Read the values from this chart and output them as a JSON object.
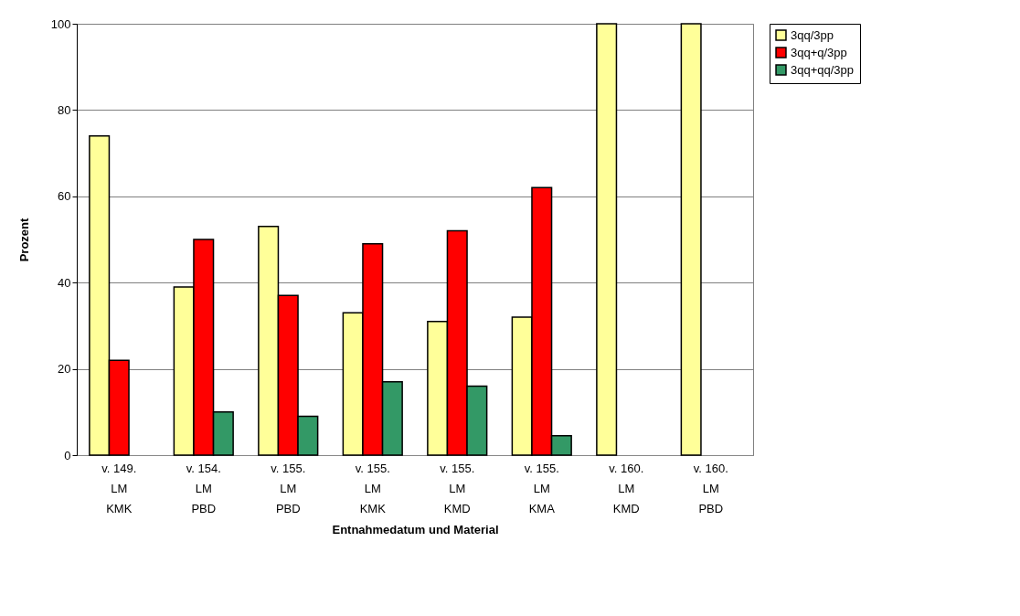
{
  "chart_data": {
    "type": "bar",
    "xlabel": "Entnahmedatum und Material",
    "ylabel": "Prozent",
    "categories": [
      "v. 149.\nLM\nKMK",
      "v. 154.\nLM\nPBD",
      "v. 155.\nLM\nPBD",
      "v. 155.\nLM\nKMK",
      "v. 155.\nLM\nKMD",
      "v. 155.\nLM\nKMA",
      "v. 160.\nLM\nKMD",
      "v. 160.\nLM\nPBD"
    ],
    "series": [
      {
        "name": "3qq/3pp",
        "color": "#ffff99",
        "values": [
          74,
          39,
          53,
          33,
          31,
          32,
          100,
          100
        ]
      },
      {
        "name": "3qq+q/3pp",
        "color": "#ff0000",
        "values": [
          22,
          50,
          37,
          49,
          52,
          62,
          0,
          0
        ]
      },
      {
        "name": "3qq+qq/3pp",
        "color": "#339966",
        "values": [
          0,
          10,
          9,
          17,
          16,
          4.5,
          0,
          0
        ]
      }
    ],
    "ylim": [
      0,
      100
    ],
    "yticks": [
      0,
      20,
      40,
      60,
      80,
      100
    ],
    "grid": "y",
    "legend": "right"
  }
}
